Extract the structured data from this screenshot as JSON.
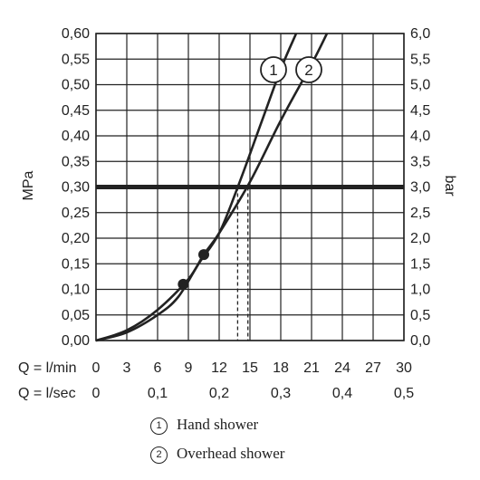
{
  "chart_data": {
    "type": "line",
    "title": "",
    "y_left": {
      "label": "MPa",
      "min": 0,
      "max": 0.6,
      "ticks": [
        "0,00",
        "0,05",
        "0,10",
        "0,15",
        "0,20",
        "0,25",
        "0,30",
        "0,35",
        "0,40",
        "0,45",
        "0,50",
        "0,55",
        "0,60"
      ]
    },
    "y_right": {
      "label": "bar",
      "min": 0,
      "max": 6,
      "ticks": [
        "0,0",
        "0,5",
        "1,0",
        "1,5",
        "2,0",
        "2,5",
        "3,0",
        "3,5",
        "4,0",
        "4,5",
        "5,0",
        "5,5",
        "6,0"
      ]
    },
    "x_lmin": {
      "label": "Q = l/min",
      "min": 0,
      "max": 30,
      "ticks": [
        "0",
        "3",
        "6",
        "9",
        "12",
        "15",
        "18",
        "21",
        "24",
        "27",
        "30"
      ]
    },
    "x_lsec": {
      "label": "Q = l/sec",
      "ticks": [
        {
          "value": 0,
          "text": "0"
        },
        {
          "value": 0.1,
          "text": "0,1"
        },
        {
          "value": 0.2,
          "text": "0,2"
        },
        {
          "value": 0.3,
          "text": "0,3"
        },
        {
          "value": 0.4,
          "text": "0,4"
        },
        {
          "value": 0.5,
          "text": "0,5"
        }
      ]
    },
    "grid": true,
    "reference_line": {
      "y": 0.3
    },
    "series": [
      {
        "name": "Hand shower",
        "marker": "1",
        "points": [
          [
            0,
            0
          ],
          [
            3,
            0.016
          ],
          [
            6,
            0.05
          ],
          [
            8,
            0.085
          ],
          [
            10,
            0.15
          ],
          [
            12,
            0.21
          ],
          [
            14,
            0.31
          ],
          [
            16,
            0.42
          ],
          [
            18,
            0.53
          ],
          [
            19.5,
            0.6
          ]
        ],
        "dot": [
          8.5,
          0.11
        ],
        "intersect_x": 13.8
      },
      {
        "name": "Overhead shower",
        "marker": "2",
        "points": [
          [
            0,
            0
          ],
          [
            3,
            0.02
          ],
          [
            6,
            0.06
          ],
          [
            9,
            0.12
          ],
          [
            10.5,
            0.168
          ],
          [
            12,
            0.21
          ],
          [
            15,
            0.31
          ],
          [
            18,
            0.43
          ],
          [
            21,
            0.54
          ],
          [
            22.5,
            0.6
          ]
        ],
        "dot": [
          10.5,
          0.168
        ],
        "intersect_x": 14.8
      }
    ]
  },
  "legend": [
    {
      "marker": "1",
      "text": "Hand shower"
    },
    {
      "marker": "2",
      "text": "Overhead shower"
    }
  ]
}
